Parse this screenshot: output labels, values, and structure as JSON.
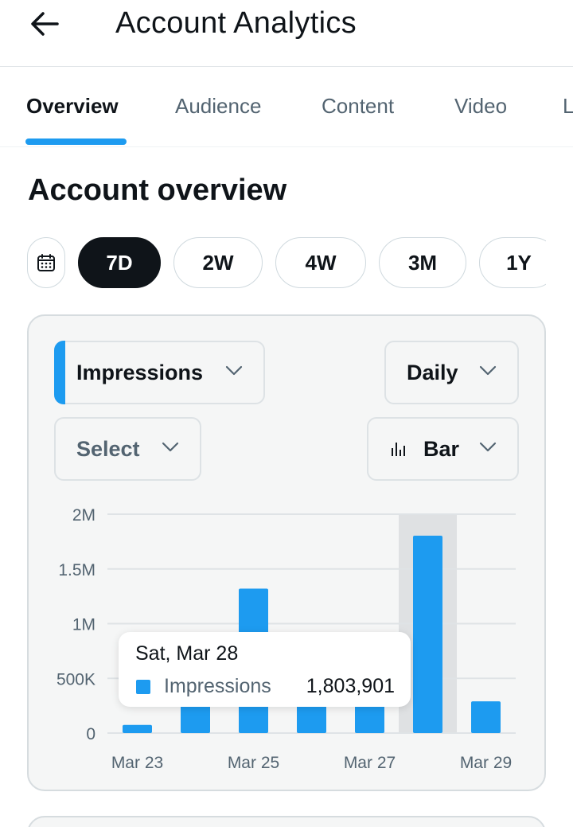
{
  "header": {
    "title": "Account Analytics",
    "back_icon": "arrow-left-icon"
  },
  "tabs": [
    {
      "label": "Overview",
      "active": true
    },
    {
      "label": "Audience",
      "active": false
    },
    {
      "label": "Content",
      "active": false
    },
    {
      "label": "Video",
      "active": false
    },
    {
      "label": "L",
      "active": false
    }
  ],
  "section": {
    "title": "Account overview"
  },
  "ranges": {
    "calendar_icon": "calendar-icon",
    "options": [
      "7D",
      "2W",
      "4W",
      "3M",
      "1Y"
    ],
    "selected": "7D"
  },
  "controls": {
    "metric": "Impressions",
    "interval": "Daily",
    "compare": "Select",
    "chart_type": "Bar",
    "chart_type_icon": "bar-chart-icon"
  },
  "colors": {
    "accent": "#1d9bf0",
    "text": "#0f1419",
    "muted": "#536471",
    "highlight": "#dfe1e3"
  },
  "chart_data": {
    "type": "bar",
    "categories": [
      "Mar 23",
      "Mar 24",
      "Mar 25",
      "Mar 26",
      "Mar 27",
      "Mar 28",
      "Mar 29"
    ],
    "x_tick_labels": [
      "Mar 23",
      "Mar 25",
      "Mar 27",
      "Mar 29"
    ],
    "series": [
      {
        "name": "Impressions",
        "values": [
          75000,
          280000,
          1320000,
          280000,
          280000,
          1803901,
          290000
        ]
      }
    ],
    "y_ticks": [
      0,
      500000,
      1000000,
      1500000,
      2000000
    ],
    "y_tick_labels": [
      "0",
      "500K",
      "1M",
      "1.5M",
      "2M"
    ],
    "ylim": [
      0,
      2000000
    ],
    "grid": true,
    "highlighted_index": 5
  },
  "tooltip": {
    "date": "Sat, Mar 28",
    "label": "Impressions",
    "value": "1,803,901"
  }
}
